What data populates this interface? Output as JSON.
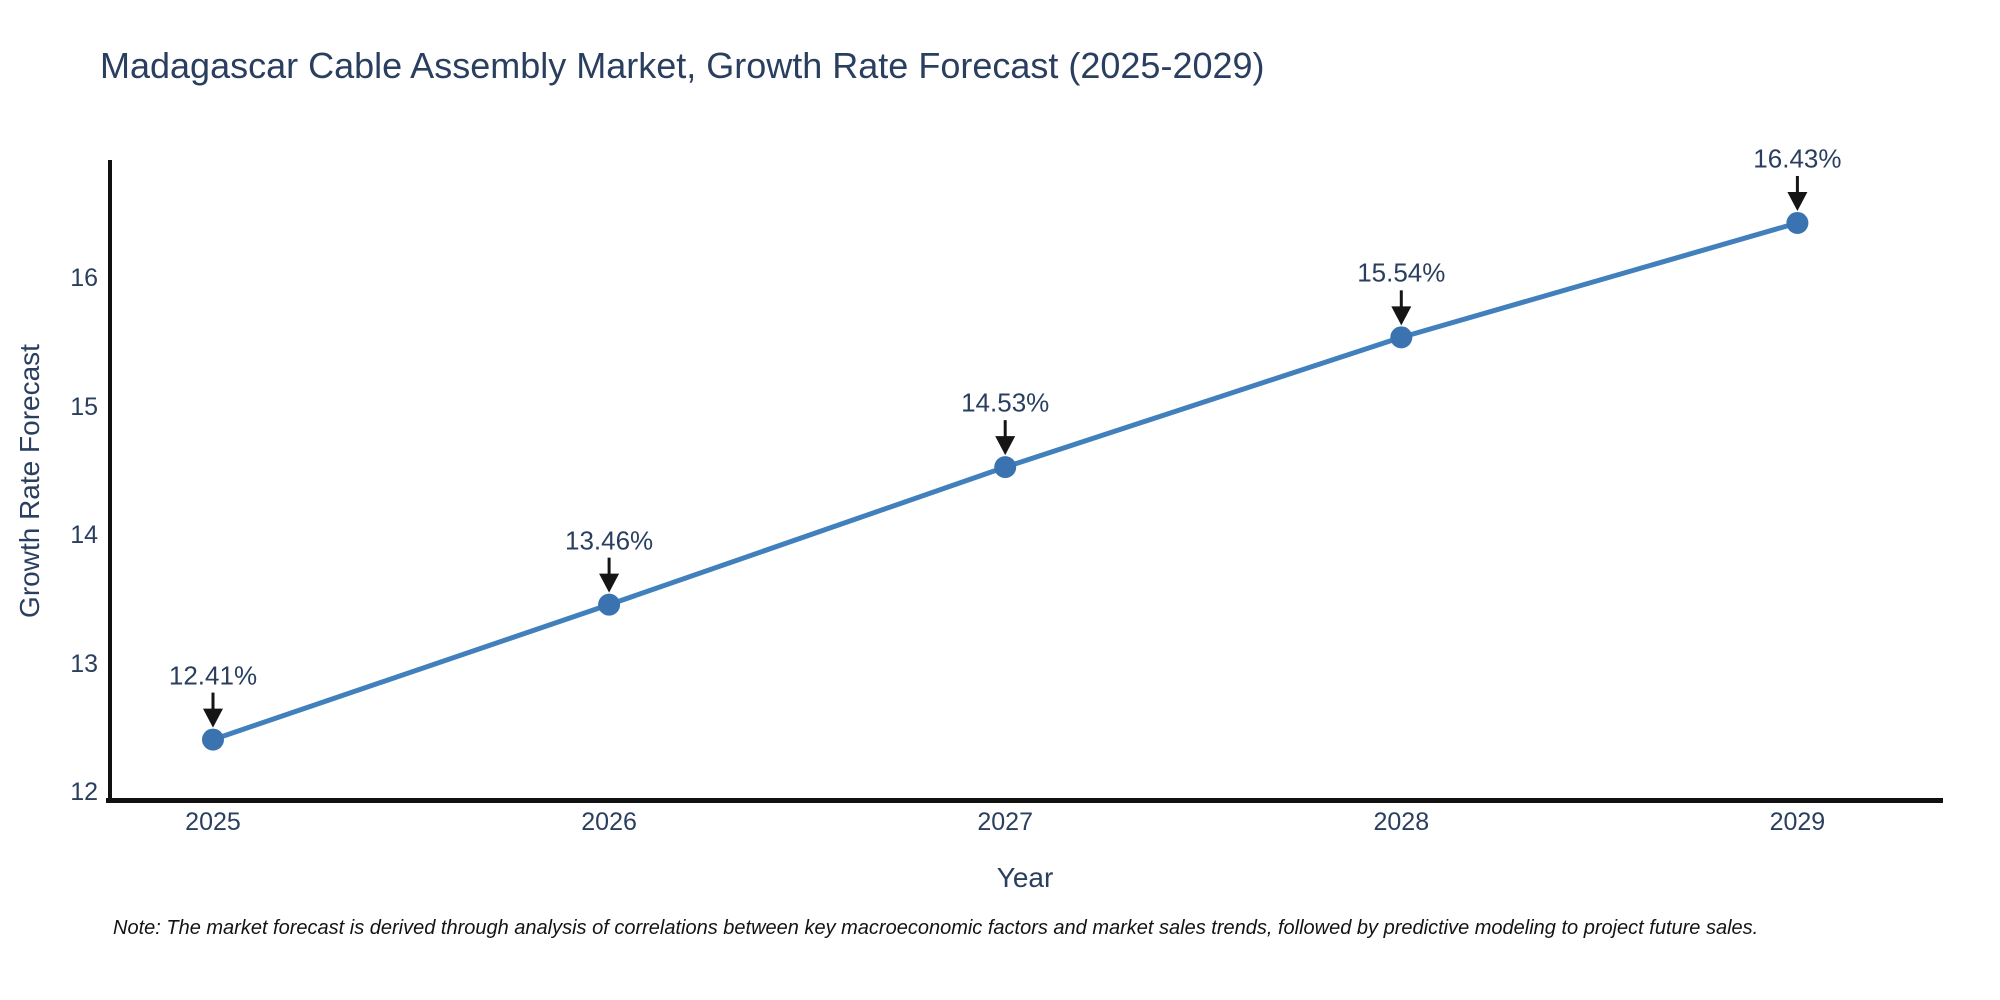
{
  "chart_data": {
    "type": "line",
    "title": "Madagascar Cable Assembly Market, Growth Rate Forecast (2025-2029)",
    "xlabel": "Year",
    "ylabel": "Growth Rate Forecast",
    "x": [
      2025,
      2026,
      2027,
      2028,
      2029
    ],
    "series": [
      {
        "name": "Growth Rate Forecast",
        "values": [
          12.41,
          13.46,
          14.53,
          15.54,
          16.43
        ]
      }
    ],
    "point_labels": [
      "12.41%",
      "13.46%",
      "14.53%",
      "15.54%",
      "16.43%"
    ],
    "xtick_labels": [
      "2025",
      "2026",
      "2027",
      "2028",
      "2029"
    ],
    "ytick_labels": [
      "12",
      "13",
      "14",
      "15",
      "16"
    ],
    "yticks": [
      12,
      13,
      14,
      15,
      16
    ],
    "xlim": [
      2024.74,
      2029.36
    ],
    "ylim": [
      11.94,
      16.92
    ],
    "grid": false,
    "legend": false,
    "marker_style": "circle",
    "annotation_arrows": true,
    "colors": {
      "line": "#4180bc",
      "marker": "#3a73b0",
      "axis": "#111111",
      "arrow": "#151515",
      "text": "#2a3f5f",
      "note": "#131313",
      "background": "#ffffff"
    }
  },
  "note": "Note: The market forecast is derived through analysis of correlations between key macroeconomic factors and market sales trends, followed by predictive modeling to project future sales."
}
